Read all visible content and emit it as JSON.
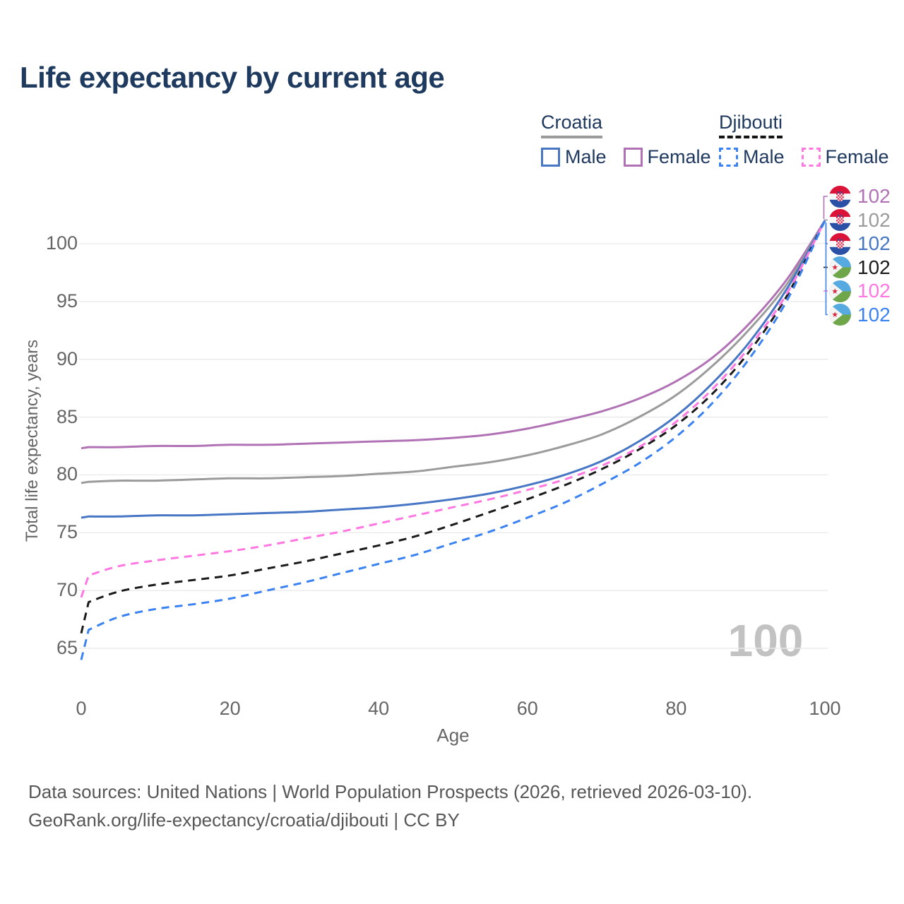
{
  "title": "Life expectancy by current age",
  "theme": {
    "title_color": "#1e3a5e",
    "legend_text_color": "#20395f",
    "axis_text_color": "#666666",
    "grid_color": "#e9e9e9",
    "watermark_color": "#c2c2c2",
    "footer_text_color": "#575757"
  },
  "legend": {
    "groups": [
      {
        "country": "Croatia",
        "line_style": "solid",
        "underline_color": "#9b9b9b",
        "items": [
          {
            "label": "Male",
            "color": "#4676c4"
          },
          {
            "label": "Female",
            "color": "#b172b5"
          }
        ]
      },
      {
        "country": "Djibouti",
        "line_style": "dashed",
        "underline_color": "#141414",
        "items": [
          {
            "label": "Male",
            "color": "#3a82f2"
          },
          {
            "label": "Female",
            "color": "#ff78e2"
          }
        ]
      }
    ]
  },
  "watermark": "100",
  "footer": {
    "line1": "Data sources: United Nations | World Population Prospects (2026, retrieved 2026-03-10).",
    "line2": "GeoRank.org/life-expectancy/croatia/djibouti | CC BY"
  },
  "chart_data": {
    "type": "line",
    "title": "Life expectancy by current age",
    "xlabel": "Age",
    "ylabel": "Total life expectancy, years",
    "x_ticks": [
      0,
      20,
      40,
      60,
      80,
      100
    ],
    "y_ticks": [
      65,
      70,
      75,
      80,
      85,
      90,
      95,
      100
    ],
    "xlim": [
      0,
      100
    ],
    "ylim": [
      63,
      103
    ],
    "grid": "horizontal",
    "legend_position": "top-right",
    "ages": [
      0,
      1,
      5,
      10,
      15,
      20,
      25,
      30,
      35,
      40,
      45,
      50,
      55,
      60,
      65,
      70,
      75,
      80,
      85,
      90,
      95,
      100
    ],
    "series": [
      {
        "id": "croatia-female",
        "country": "Croatia",
        "sex": "Female",
        "color": "#b172b5",
        "dash": "solid",
        "end_label": "102",
        "flag": "croatia",
        "values": [
          82.3,
          82.4,
          82.4,
          82.5,
          82.5,
          82.6,
          82.6,
          82.7,
          82.8,
          82.9,
          83.0,
          83.2,
          83.5,
          84.0,
          84.7,
          85.5,
          86.6,
          88.1,
          90.2,
          93.2,
          97.0,
          102.0
        ]
      },
      {
        "id": "croatia-both",
        "country": "Croatia",
        "sex": "Both sexes",
        "color": "#9b9b9b",
        "dash": "solid",
        "end_label": "102",
        "flag": "croatia",
        "values": [
          79.3,
          79.4,
          79.5,
          79.5,
          79.6,
          79.7,
          79.7,
          79.8,
          79.9,
          80.1,
          80.3,
          80.7,
          81.1,
          81.7,
          82.5,
          83.5,
          85.0,
          86.9,
          89.5,
          92.7,
          96.6,
          102.0
        ]
      },
      {
        "id": "croatia-male",
        "country": "Croatia",
        "sex": "Male",
        "color": "#4676c4",
        "dash": "solid",
        "end_label": "102",
        "flag": "croatia",
        "values": [
          76.3,
          76.4,
          76.4,
          76.5,
          76.5,
          76.6,
          76.7,
          76.8,
          77.0,
          77.2,
          77.5,
          77.9,
          78.4,
          79.1,
          80.0,
          81.2,
          82.9,
          85.1,
          88.0,
          91.6,
          96.2,
          102.0
        ]
      },
      {
        "id": "djibouti-both",
        "country": "Djibouti",
        "sex": "Both sexes",
        "color": "#1a1a1a",
        "dash": "dashed",
        "end_label": "102",
        "flag": "djibouti",
        "values": [
          66.3,
          69.0,
          69.9,
          70.5,
          70.9,
          71.3,
          71.9,
          72.5,
          73.2,
          73.9,
          74.7,
          75.7,
          76.8,
          77.9,
          79.1,
          80.5,
          82.2,
          84.3,
          87.1,
          90.8,
          95.6,
          102.0
        ]
      },
      {
        "id": "djibouti-female",
        "country": "Djibouti",
        "sex": "Female",
        "color": "#ff78e2",
        "dash": "dashed",
        "end_label": "102",
        "flag": "djibouti",
        "values": [
          69.4,
          71.3,
          72.1,
          72.6,
          73.0,
          73.4,
          73.9,
          74.5,
          75.1,
          75.8,
          76.5,
          77.2,
          77.9,
          78.7,
          79.6,
          80.8,
          82.4,
          84.6,
          87.5,
          91.2,
          95.8,
          102.0
        ]
      },
      {
        "id": "djibouti-male",
        "country": "Djibouti",
        "sex": "Male",
        "color": "#3a82f2",
        "dash": "dashed",
        "end_label": "102",
        "flag": "djibouti",
        "values": [
          64.0,
          66.6,
          67.7,
          68.4,
          68.8,
          69.3,
          70.0,
          70.7,
          71.5,
          72.3,
          73.1,
          74.1,
          75.1,
          76.3,
          77.6,
          79.2,
          81.0,
          83.3,
          86.3,
          90.2,
          95.2,
          102.0
        ]
      }
    ]
  }
}
